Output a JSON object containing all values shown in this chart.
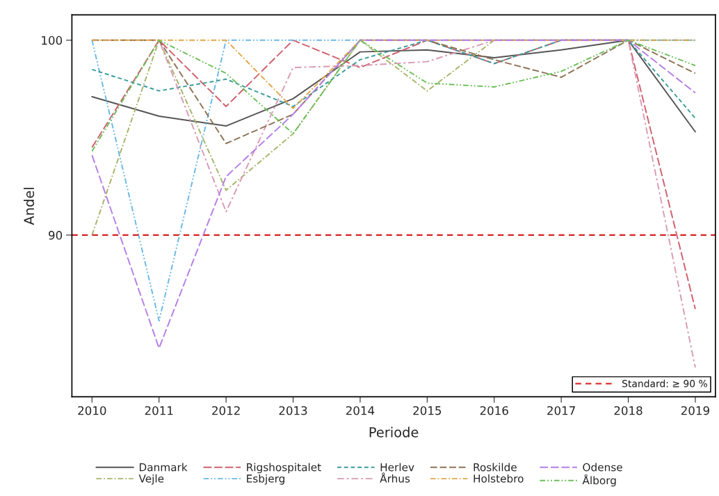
{
  "chart_data": {
    "type": "line",
    "xlabel": "Periode",
    "ylabel": "Andel",
    "x": [
      2010,
      2011,
      2012,
      2013,
      2014,
      2015,
      2016,
      2017,
      2018,
      2019
    ],
    "xlim": [
      2009.7,
      2019.3
    ],
    "xticks": [
      2010,
      2011,
      2012,
      2013,
      2014,
      2015,
      2016,
      2017,
      2018,
      2019
    ],
    "ylim": [
      81.7,
      101.3
    ],
    "yticks": [
      90,
      100
    ],
    "grid": false,
    "legend": "bottom",
    "line_style": "dashed",
    "series": [
      {
        "name": "Danmark",
        "color": "#555555",
        "line_style": "solid",
        "values": [
          97.1,
          96.1,
          95.6,
          97.0,
          99.4,
          99.5,
          99.1,
          99.5,
          100,
          95.3
        ]
      },
      {
        "name": "Vejle",
        "color": "#a5b56a",
        "values": [
          90.0,
          100,
          92.3,
          95.2,
          100,
          97.4,
          100,
          100,
          100,
          100
        ]
      },
      {
        "name": "Rigshospitalet",
        "color": "#d0606e",
        "values": [
          94.5,
          100,
          96.6,
          100,
          98.6,
          100,
          98.8,
          100,
          100,
          86.2
        ]
      },
      {
        "name": "Esbjerg",
        "color": "#6ab8e8",
        "values": [
          100,
          85.6,
          100,
          100,
          100,
          100,
          100,
          100,
          100,
          100
        ]
      },
      {
        "name": "Herlev",
        "color": "#3a9c9c",
        "values": [
          98.5,
          97.4,
          98.0,
          96.6,
          99.0,
          100,
          98.8,
          100,
          100,
          96.0
        ]
      },
      {
        "name": "Århus",
        "color": "#d99ab4",
        "values": [
          100,
          100,
          91.2,
          98.6,
          98.7,
          98.9,
          100,
          100,
          100,
          83.2
        ]
      },
      {
        "name": "Roskilde",
        "color": "#8c7355",
        "values": [
          100,
          100,
          94.7,
          96.2,
          100,
          100,
          99.0,
          98.1,
          100,
          98.3
        ]
      },
      {
        "name": "Holstebro",
        "color": "#e0a84a",
        "values": [
          100,
          100,
          100,
          96.5,
          100,
          100,
          100,
          100,
          100,
          100
        ]
      },
      {
        "name": "Odense",
        "color": "#b57ee8",
        "values": [
          94.1,
          84.2,
          93.0,
          96.2,
          100,
          100,
          100,
          100,
          100,
          97.3
        ]
      },
      {
        "name": "Ålborg",
        "color": "#6cbf5a",
        "values": [
          94.3,
          100,
          98.3,
          95.2,
          100,
          97.8,
          97.6,
          98.4,
          100,
          98.7
        ]
      }
    ],
    "ref_lines": [
      {
        "axis": "y",
        "value": 90,
        "label": "Standard: ≥ 90 %",
        "color": "#d62020",
        "line_style": "dashed"
      }
    ]
  }
}
